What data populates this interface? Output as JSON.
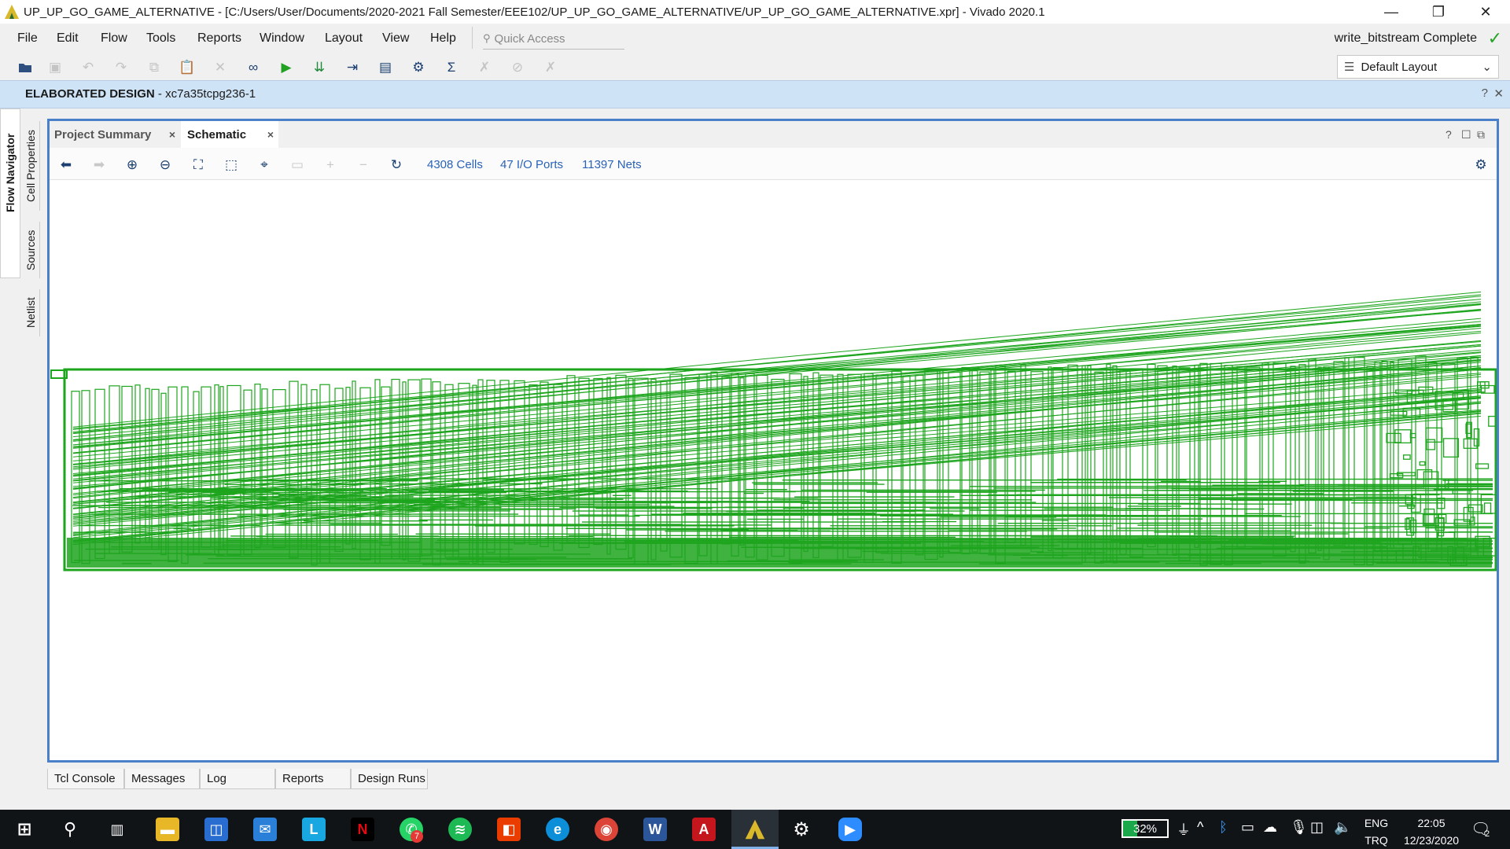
{
  "window": {
    "title": "UP_UP_GO_GAME_ALTERNATIVE - [C:/Users/User/Documents/2020-2021 Fall Semester/EEE102/UP_UP_GO_GAME_ALTERNATIVE/UP_UP_GO_GAME_ALTERNATIVE.xpr] - Vivado 2020.1",
    "minimize": "—",
    "restore": "❐",
    "close": "✕"
  },
  "menu": {
    "items": [
      "File",
      "Edit",
      "Flow",
      "Tools",
      "Reports",
      "Window",
      "Layout",
      "View",
      "Help"
    ],
    "quick_access": "Quick Access"
  },
  "status": {
    "text": "write_bitstream Complete",
    "check": "✓"
  },
  "toolbar": {
    "layout": "Default Layout"
  },
  "banner": {
    "title": "ELABORATED DESIGN",
    "part": " - xc7a35tcpg236-1",
    "help": "?",
    "close": "✕"
  },
  "side_tabs": {
    "flow_navigator": "Flow Navigator",
    "cell_properties": "Cell Properties",
    "sources": "Sources",
    "netlist": "Netlist"
  },
  "tabs": [
    {
      "label": "Project Summary",
      "active": false
    },
    {
      "label": "Schematic",
      "active": true
    }
  ],
  "tab_controls": {
    "help": "?",
    "restore": "☐",
    "float": "⧉",
    "close": "×"
  },
  "schematic": {
    "cells": "4308 Cells",
    "io_ports": "47 I/O Ports",
    "nets": "11397 Nets"
  },
  "bottom_tabs": [
    "Tcl Console",
    "Messages",
    "Log",
    "Reports",
    "Design Runs"
  ],
  "taskbar": {
    "battery": "32%",
    "lang1": "ENG",
    "lang2": "TRQ",
    "time": "22:05",
    "date": "12/23/2020",
    "whatsapp_badge": "7",
    "notifications": "2"
  },
  "colors": {
    "accent": "#4a7fc9",
    "schematic_green": "#1ea51e",
    "banner": "#cfe3f7"
  }
}
